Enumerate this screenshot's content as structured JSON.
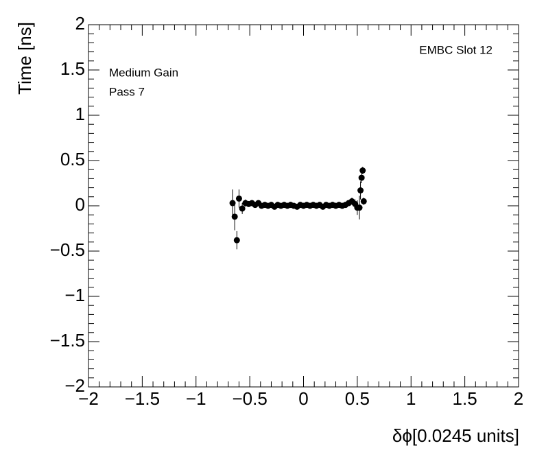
{
  "chart_data": {
    "type": "scatter",
    "xlabel": "δϕ[0.0245 units]",
    "ylabel": "Time [ns]",
    "annotations": [
      "EMBC Slot 12",
      "Medium Gain",
      "Pass 7"
    ],
    "x": [
      -0.66,
      -0.64,
      -0.62,
      -0.6,
      -0.57,
      -0.54,
      -0.51,
      -0.48,
      -0.45,
      -0.42,
      -0.39,
      -0.36,
      -0.33,
      -0.3,
      -0.27,
      -0.24,
      -0.21,
      -0.18,
      -0.15,
      -0.12,
      -0.09,
      -0.06,
      -0.03,
      0,
      0.03,
      0.06,
      0.09,
      0.12,
      0.15,
      0.18,
      0.21,
      0.24,
      0.27,
      0.3,
      0.33,
      0.36,
      0.39,
      0.42,
      0.45,
      0.48,
      0.5,
      0.52,
      0.53,
      0.54,
      0.55,
      0.56
    ],
    "values": [
      0.03,
      -0.12,
      -0.38,
      0.08,
      -0.03,
      0.03,
      0.02,
      0.03,
      0.01,
      0.03,
      0,
      0.01,
      0,
      0.01,
      -0.01,
      0.01,
      0,
      0.01,
      0,
      0.01,
      0,
      -0.01,
      0.01,
      0,
      0.01,
      0,
      0.01,
      0,
      0.01,
      -0.01,
      0.01,
      0,
      0.01,
      0,
      0.01,
      0,
      0.01,
      0.03,
      0.05,
      0.02,
      -0.02,
      -0.02,
      0.17,
      0.31,
      0.39,
      0.05
    ],
    "errors": [
      0.15,
      0.15,
      0.1,
      0.1,
      0.06,
      0.04,
      0.03,
      0.03,
      0.02,
      0.02,
      0.02,
      0.02,
      0.02,
      0.02,
      0.02,
      0.02,
      0.02,
      0.02,
      0.02,
      0.02,
      0.02,
      0.02,
      0.02,
      0.02,
      0.02,
      0.02,
      0.02,
      0.02,
      0.02,
      0.02,
      0.02,
      0.02,
      0.02,
      0.02,
      0.02,
      0.02,
      0.02,
      0.03,
      0.04,
      0.05,
      0.08,
      0.13,
      0.1,
      0.06,
      0.04,
      0.04
    ],
    "color": "#000000",
    "xlim": [
      -2,
      2
    ],
    "ylim": [
      -2,
      2
    ],
    "xticks": [
      {
        "value": -2,
        "label": "−2"
      },
      {
        "value": -1.5,
        "label": "−1.5"
      },
      {
        "value": -1,
        "label": "−1"
      },
      {
        "value": -0.5,
        "label": "−0.5"
      },
      0,
      0.5,
      1,
      1.5,
      2
    ],
    "yticks": [
      {
        "value": -2,
        "label": "−2"
      },
      {
        "value": -1.5,
        "label": "−1.5"
      },
      {
        "value": -1,
        "label": "−1"
      },
      {
        "value": -0.5,
        "label": "−0.5"
      },
      0,
      0.5,
      1,
      1.5,
      2
    ],
    "grid": false
  }
}
